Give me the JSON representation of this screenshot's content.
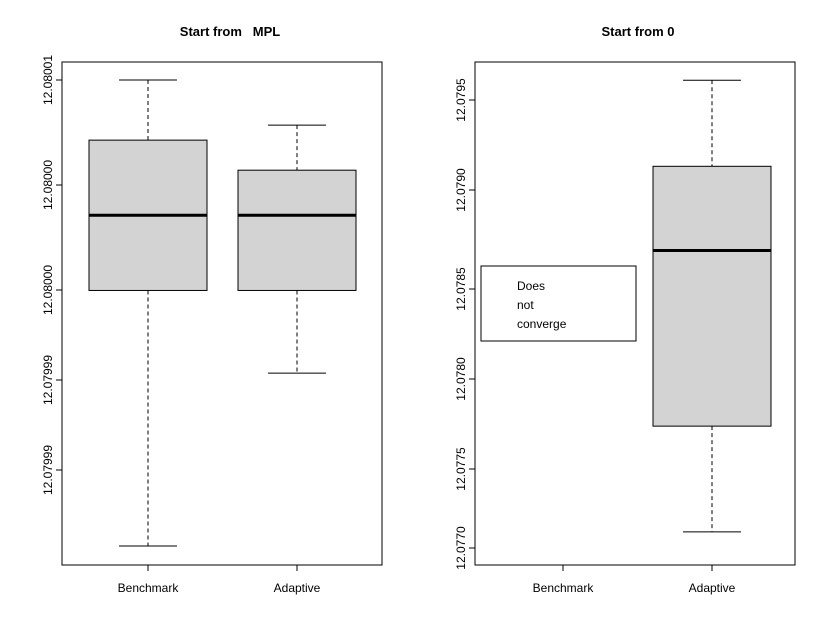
{
  "chart_data": [
    {
      "type": "box",
      "title": "Start from   MPL",
      "categories": [
        "Benchmark",
        "Adaptive"
      ],
      "y_tick_labels": [
        "12.08001",
        "12.08000",
        "12.08000",
        "12.07999",
        "12.07999"
      ],
      "boxes": [
        {
          "name": "Benchmark",
          "min": 12.079988,
          "q1": 12.080005,
          "median": 12.08001,
          "q3": 12.080015,
          "max": 12.080019
        },
        {
          "name": "Adaptive",
          "min": 12.0799995,
          "q1": 12.080005,
          "median": 12.08001,
          "q3": 12.080013,
          "max": 12.080016
        }
      ],
      "note_lines": []
    },
    {
      "type": "box",
      "title": "Start from 0",
      "categories": [
        "Benchmark",
        "Adaptive"
      ],
      "y_tick_labels": [
        "12.0770",
        "12.0775",
        "12.0780",
        "12.0785",
        "12.0790",
        "12.0795"
      ],
      "boxes": [
        {
          "name": "Adaptive",
          "min": 12.07709,
          "q1": 12.07768,
          "median": 12.07866,
          "q3": 12.07913,
          "max": 12.07961
        }
      ],
      "note_lines": [
        "Does",
        "not",
        "converge"
      ]
    }
  ]
}
